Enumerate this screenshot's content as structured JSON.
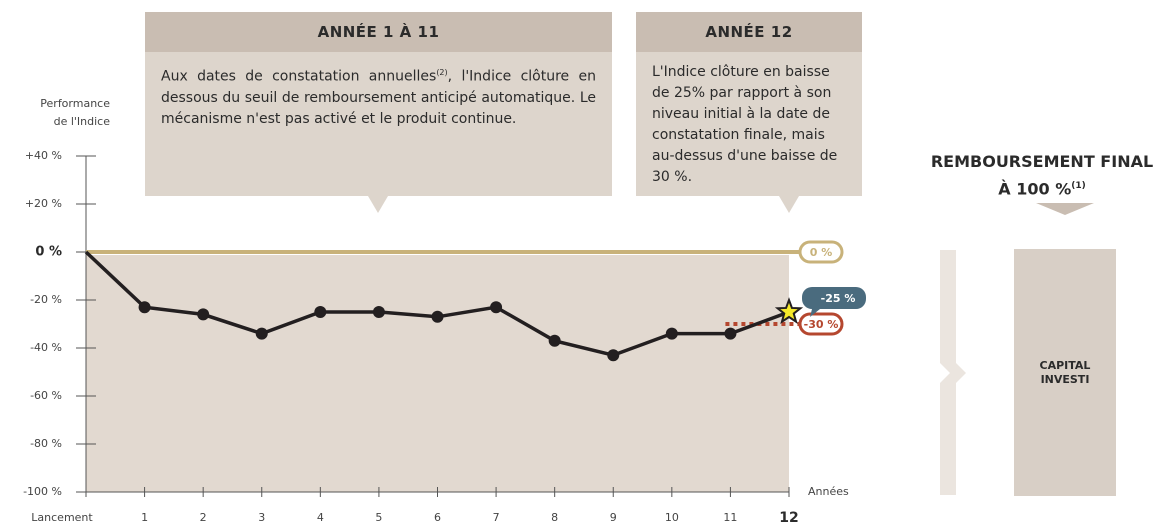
{
  "chart_data": {
    "type": "line",
    "y_label": "Performance de l'Indice",
    "x_label": "Années",
    "categories": [
      "Lancement",
      "1",
      "2",
      "3",
      "4",
      "5",
      "6",
      "7",
      "8",
      "9",
      "10",
      "11",
      "12"
    ],
    "values": [
      0,
      -23,
      -26,
      -34,
      -25,
      -25,
      -27,
      -23,
      -37,
      -43,
      -34,
      -34,
      -25
    ],
    "color": "#231f20",
    "ylim": [
      -100,
      40
    ],
    "yticks": [
      {
        "value": 40,
        "label": "+40 %"
      },
      {
        "value": 20,
        "label": "+20 %"
      },
      {
        "value": 0,
        "label": "0 %"
      },
      {
        "value": -20,
        "label": "-20 %"
      },
      {
        "value": -40,
        "label": "-40 %"
      },
      {
        "value": -60,
        "label": "-60 %"
      },
      {
        "value": -80,
        "label": "-80 %"
      },
      {
        "value": -100,
        "label": "-100 %"
      }
    ],
    "reference_lines": [
      {
        "value": 0,
        "label": "0 %",
        "color": "#c8b27a"
      },
      {
        "value": -30,
        "label": "-30 %",
        "color": "#b5472f"
      }
    ],
    "final_label": "-25 %"
  },
  "panels": [
    {
      "title": "ANNÉE 1 À 11",
      "text_before": "Aux dates de constatation annuelles",
      "note": "(2)",
      "text_after": ", l'Indice clôture en dessous du seuil de remboursement anticipé automatique. Le mécanisme n'est pas activé et le produit continue."
    },
    {
      "title": "ANNÉE 12",
      "text_before": "L'Indice clôture en baisse de 25% par rapport à son niveau initial à la date de constatation finale, mais au-dessus d'une baisse de 30 %."
    }
  ],
  "outcome": {
    "title": "REMBOURSEMENT FINAL À 100 %",
    "note": "(1)",
    "box": "CAPITAL INVESTI"
  }
}
